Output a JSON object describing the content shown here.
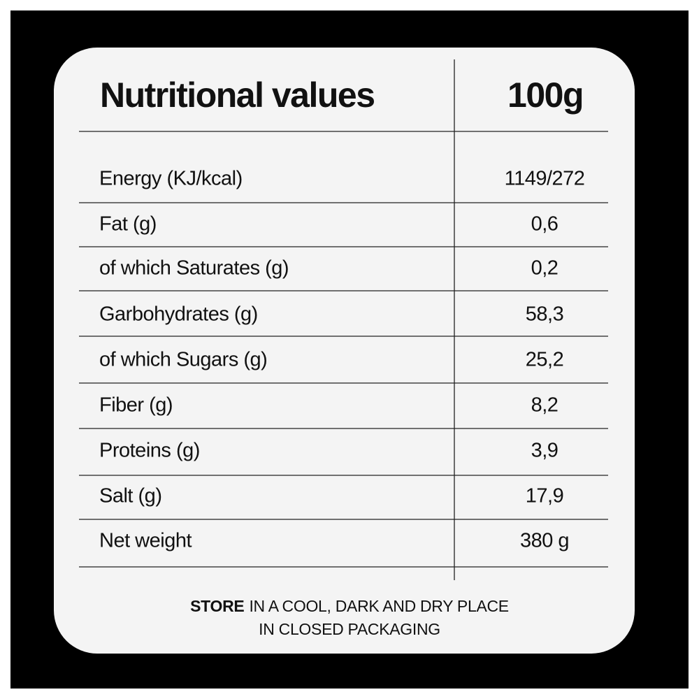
{
  "table": {
    "header": [
      "Nutritional values",
      "100g"
    ],
    "rows": [
      [
        "Energy (KJ/kcal)",
        "1149/272"
      ],
      [
        "Fat (g)",
        "0,6"
      ],
      [
        "of which Saturates (g)",
        "0,2"
      ],
      [
        "Garbohydrates (g)",
        "58,3"
      ],
      [
        "of which Sugars (g)",
        "25,2"
      ],
      [
        "Fiber (g)",
        "8,2"
      ],
      [
        "Proteins (g)",
        "3,9"
      ],
      [
        "Salt (g)",
        "17,9"
      ],
      [
        "Net weight",
        "380 g"
      ]
    ]
  },
  "footer": {
    "bold": "STORE",
    "line1": "IN A COOL, DARK AND DRY PLACE",
    "line2": "IN CLOSED PACKAGING"
  }
}
